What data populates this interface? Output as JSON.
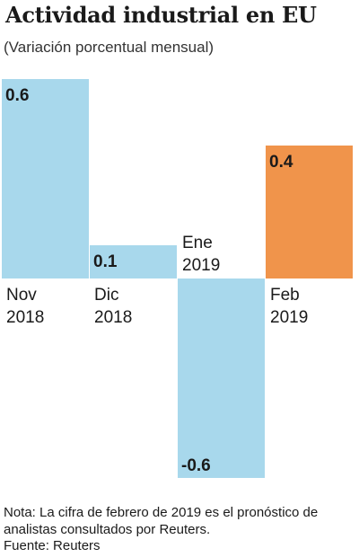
{
  "header": {
    "title": "Actividad industrial en EU",
    "subtitle": "(Variación porcentual mensual)"
  },
  "chart_data": {
    "type": "bar",
    "categories": [
      [
        "Nov",
        "2018"
      ],
      [
        "Dic",
        "2018"
      ],
      [
        "Ene",
        "2019"
      ],
      [
        "Feb",
        "2019"
      ]
    ],
    "values": [
      0.6,
      0.1,
      -0.6,
      0.4
    ],
    "value_labels": [
      "0.6",
      "0.1",
      "-0.6",
      "0.4"
    ],
    "ylim": [
      -0.6,
      0.6
    ],
    "grid": false,
    "bar_colors": [
      "#a8d8ec",
      "#a8d8ec",
      "#a8d8ec",
      "#f0944b"
    ]
  },
  "footer": {
    "note": "Nota: La cifra de febrero de 2019 es el pronóstico de analistas consultados por Reuters.",
    "source": "Fuente: Reuters"
  },
  "colors": {
    "bar_blue": "#a8d8ec",
    "bar_orange": "#f0944b"
  }
}
